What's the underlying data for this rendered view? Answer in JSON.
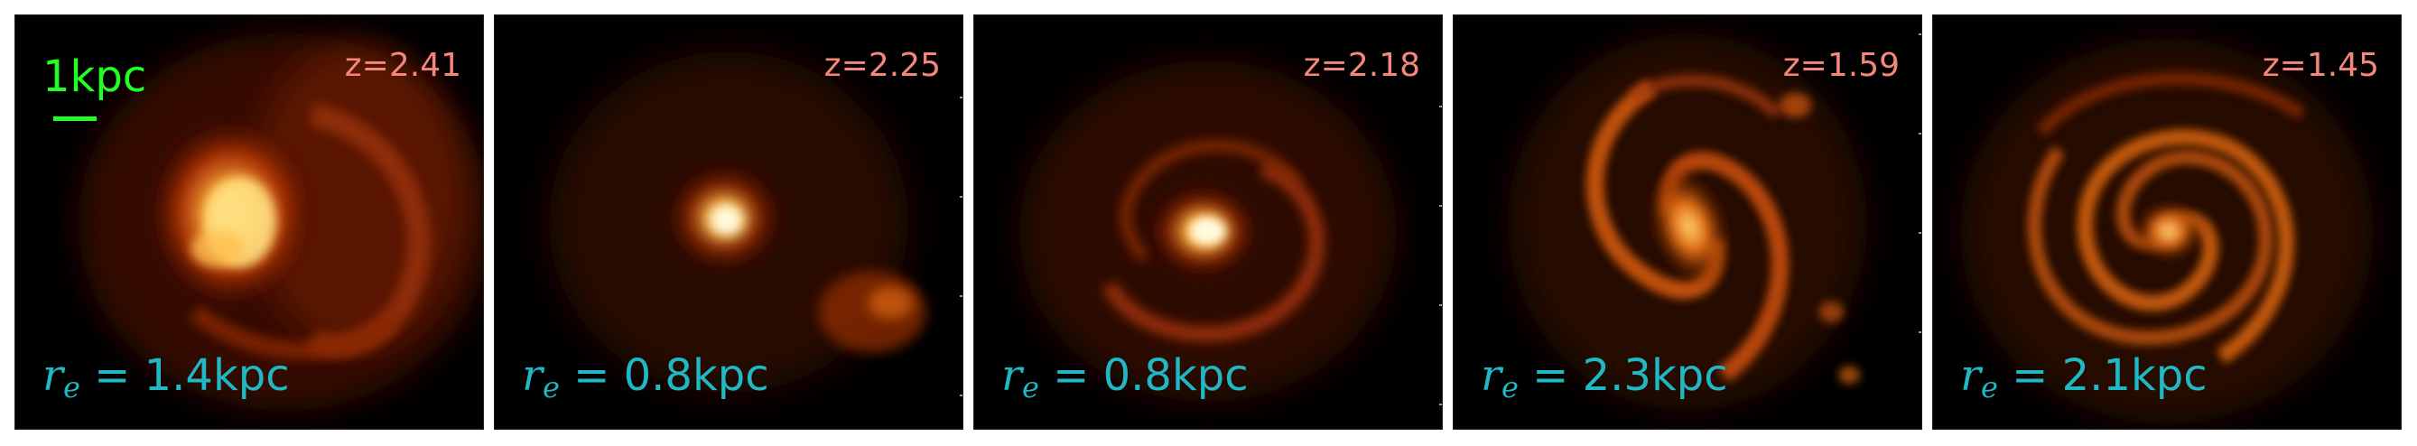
{
  "scale_bar": {
    "label": "1kpc",
    "color": "#22ff22"
  },
  "colors": {
    "redshift": "#f4867a",
    "radius": "#1fb8c4",
    "background": "#000000"
  },
  "panels": [
    {
      "redshift": "z=2.41",
      "radius_symbol": "r",
      "radius_sub": "e",
      "radius_value": "= 1.4kpc",
      "morphology": "irregular-clumpy"
    },
    {
      "redshift": "z=2.25",
      "radius_symbol": "r",
      "radius_sub": "e",
      "radius_value": "= 0.8kpc",
      "morphology": "compact-core"
    },
    {
      "redshift": "z=2.18",
      "radius_symbol": "r",
      "radius_sub": "e",
      "radius_value": "= 0.8kpc",
      "morphology": "compact-core-arms"
    },
    {
      "redshift": "z=1.59",
      "radius_symbol": "r",
      "radius_sub": "e",
      "radius_value": "= 2.3kpc",
      "morphology": "barred-spiral"
    },
    {
      "redshift": "z=1.45",
      "radius_symbol": "r",
      "radius_sub": "e",
      "radius_value": "= 2.1kpc",
      "morphology": "grand-design-spiral"
    }
  ]
}
